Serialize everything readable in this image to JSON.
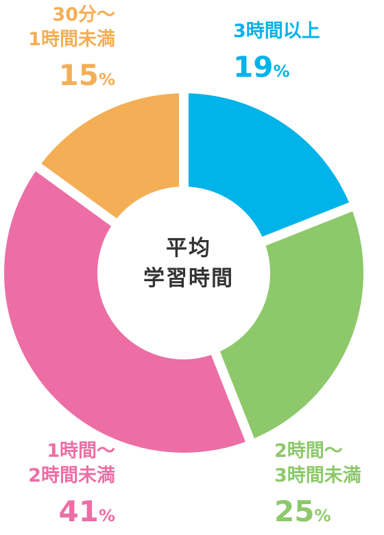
{
  "chart_data": {
    "type": "pie",
    "title": "平均学習時間",
    "title_lines": [
      "平均",
      "学習時間"
    ],
    "unit": "%",
    "slices": [
      {
        "name_lines": [
          "3時間以上"
        ],
        "value": 19,
        "color": "#00b3e8"
      },
      {
        "name_lines": [
          "2時間～",
          "3時間未満"
        ],
        "value": 25,
        "color": "#8dc86a"
      },
      {
        "name_lines": [
          "1時間～",
          "2時間未満"
        ],
        "value": 41,
        "color": "#ec6ea5"
      },
      {
        "name_lines": [
          "30分～",
          "1時間未満"
        ],
        "value": 15,
        "color": "#f4ae55"
      }
    ]
  }
}
